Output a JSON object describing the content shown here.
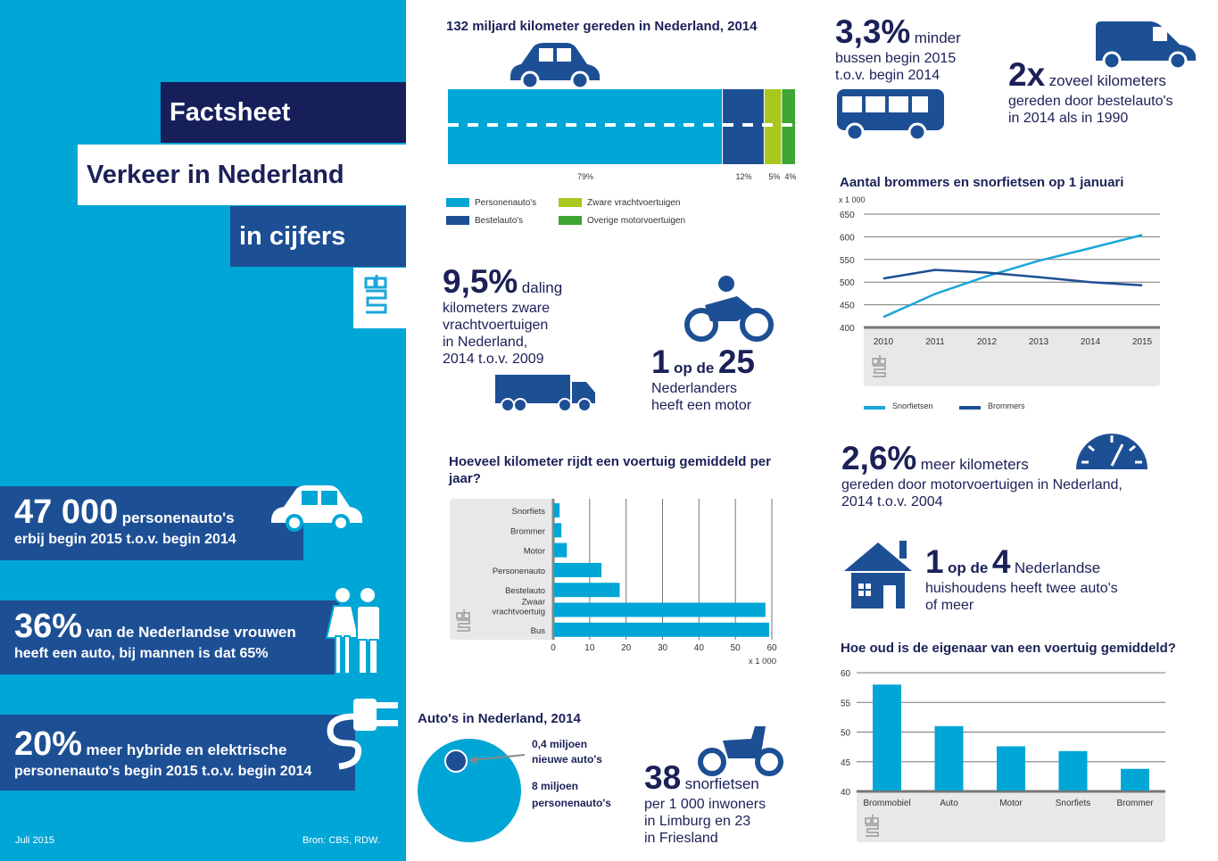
{
  "colors": {
    "cyan": "#00a6d6",
    "navy": "#1b2158",
    "blue": "#1d4f95",
    "lime": "#a8c81e",
    "green": "#3fa535",
    "gray": "#e8e8e8"
  },
  "title": {
    "line1": "Factsheet",
    "line2": "Verkeer in Nederland",
    "line3": "in cijfers",
    "logo": "cbs"
  },
  "left_stats": [
    {
      "big": "47 000",
      "mid": "personenauto's",
      "sub": "erbij begin 2015 t.o.v. begin 2014",
      "icon": "car-icon"
    },
    {
      "big": "36%",
      "mid": "van de Nederlandse vrouwen",
      "sub": "heeft een auto, bij mannen is dat 65%",
      "icon": "people-icon"
    },
    {
      "big": "20%",
      "mid": "meer hybride en elektrische",
      "sub": "personenauto's begin 2015 t.o.v. begin 2014",
      "icon": "plug-icon"
    }
  ],
  "footer": {
    "date": "Juli 2015",
    "source": "Bron: CBS, RDW."
  },
  "stats": {
    "trucks": {
      "big": "9,5%",
      "mid": "daling",
      "lines": [
        "kilometers zware",
        "vrachtvoertuigen",
        "in Nederland,",
        "2014 t.o.v. 2009"
      ]
    },
    "motor": {
      "n1": "1",
      "op": "op de",
      "n2": "25",
      "lines": [
        "Nederlanders",
        "heeft een motor"
      ]
    },
    "bus": {
      "big": "3,3%",
      "mid": "minder",
      "lines": [
        "bussen begin 2015",
        "t.o.v. begin 2014"
      ]
    },
    "van": {
      "big": "2x",
      "mid": "zoveel kilometers",
      "lines": [
        "gereden door bestelauto's",
        "in 2014 als in 1990"
      ]
    },
    "km": {
      "big": "2,6%",
      "mid": "meer kilometers",
      "lines": [
        "gereden door motorvoertuigen in Nederland,",
        "2014 t.o.v. 2004"
      ]
    },
    "house": {
      "n1": "1",
      "op": "op de",
      "n2": "4",
      "mid": "Nederlandse",
      "lines": [
        "huishoudens heeft twee auto's",
        "of meer"
      ]
    },
    "scooter": {
      "big": "38",
      "mid": "snorfietsen",
      "lines": [
        "per 1 000 inwoners",
        "in Limburg en 23",
        "in Friesland"
      ]
    }
  },
  "chart_data": [
    {
      "type": "bar",
      "orientation": "stacked-horizontal",
      "title": "132 miljard kilometer gereden in Nederland, 2014",
      "series": [
        {
          "name": "Personenauto's",
          "values": [
            79
          ],
          "label": "79%",
          "color": "#00a6d6"
        },
        {
          "name": "Bestelauto's",
          "values": [
            12
          ],
          "label": "12%",
          "color": "#1d4f95"
        },
        {
          "name": "Zware vrachtvoertuigen",
          "values": [
            5
          ],
          "label": "5%",
          "color": "#a8c81e"
        },
        {
          "name": "Overige motorvoertuigen",
          "values": [
            4
          ],
          "label": "4%",
          "color": "#3fa535"
        }
      ]
    },
    {
      "type": "line",
      "title": "Aantal brommers en snorfietsen op 1 januari",
      "unit": "x 1 000",
      "x": [
        2010,
        2011,
        2012,
        2013,
        2014,
        2015
      ],
      "ylim": [
        400,
        650
      ],
      "yticks": [
        400,
        450,
        500,
        550,
        600,
        650
      ],
      "grid": true,
      "legend": "bottom",
      "series": [
        {
          "name": "Snorfietsen",
          "values": [
            423,
            474,
            513,
            547,
            575,
            604
          ],
          "color": "#1aa7d9"
        },
        {
          "name": "Brommers",
          "values": [
            508,
            527,
            521,
            511,
            500,
            493
          ],
          "color": "#1d4f95"
        }
      ]
    },
    {
      "type": "bar",
      "orientation": "horizontal",
      "title": "Hoeveel kilometer rijdt een voertuig gemiddeld per jaar?",
      "unit": "x 1 000",
      "categories": [
        "Snorfiets",
        "Brommer",
        "Motor",
        "Personenauto",
        "Bestelauto",
        "Zwaar vrachtvoertuig",
        "Bus"
      ],
      "values": [
        1.5,
        2,
        3.5,
        13,
        18,
        58,
        59
      ],
      "xlim": [
        0,
        60
      ],
      "xticks": [
        0,
        10,
        20,
        30,
        40,
        50,
        60
      ],
      "grid": true
    },
    {
      "type": "pie",
      "title": "Auto's in Nederland, 2014",
      "items": [
        {
          "label": "0,4 miljoen",
          "sub": "nieuwe auto's",
          "value": 0.4
        },
        {
          "label": "8 miljoen",
          "sub": "personenauto's",
          "value": 8
        }
      ]
    },
    {
      "type": "bar",
      "title": "Hoe oud is de eigenaar van een voertuig gemiddeld?",
      "categories": [
        "Brommobiel",
        "Auto",
        "Motor",
        "Snorfiets",
        "Brommer"
      ],
      "values": [
        58,
        51,
        47.6,
        46.8,
        43.8
      ],
      "ylim": [
        40,
        60
      ],
      "yticks": [
        40,
        45,
        50,
        55,
        60
      ],
      "grid": true
    }
  ]
}
